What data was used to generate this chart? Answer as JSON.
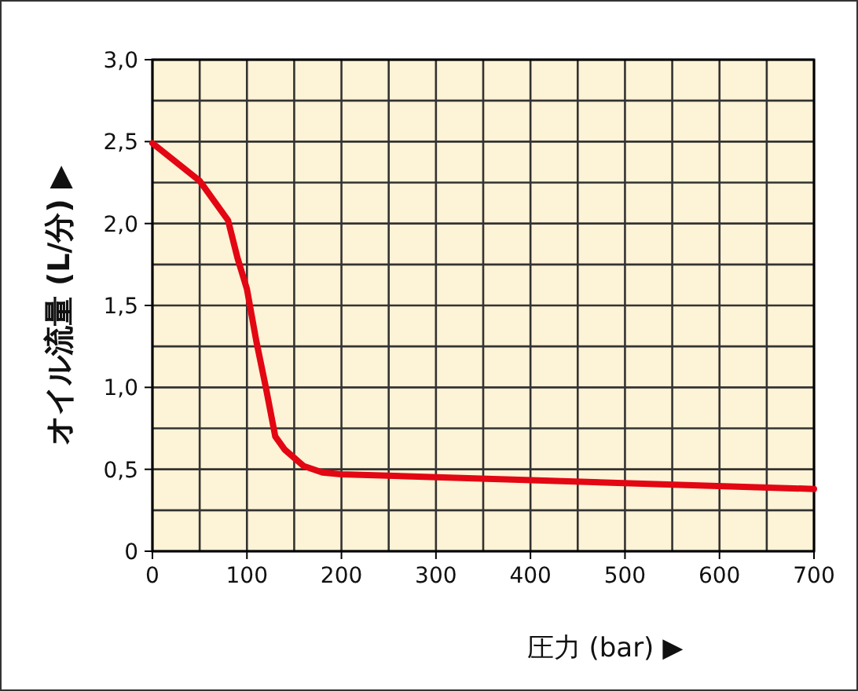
{
  "chart_data": {
    "type": "line",
    "xlabel": "圧力 (bar) ▶",
    "ylabel": "オイル流量 (L/分) ▶",
    "x": [
      0,
      50,
      80,
      90,
      100,
      110,
      120,
      130,
      140,
      160,
      180,
      200,
      700
    ],
    "series": [
      {
        "color": "#e30613",
        "values": [
          2.49,
          2.26,
          2.02,
          1.79,
          1.6,
          1.28,
          1.0,
          0.7,
          0.62,
          0.52,
          0.48,
          0.47,
          0.38
        ]
      }
    ],
    "xlim": [
      0,
      700
    ],
    "ylim": [
      0,
      3
    ],
    "xticks": [
      0,
      {
        "value": 50,
        "label": null
      },
      100,
      {
        "value": 150,
        "label": null
      },
      200,
      {
        "value": 250,
        "label": null
      },
      300,
      {
        "value": 350,
        "label": null
      },
      400,
      {
        "value": 450,
        "label": null
      },
      500,
      {
        "value": 550,
        "label": null
      },
      600,
      {
        "value": 650,
        "label": null
      },
      700
    ],
    "yticks": [
      0,
      {
        "value": 0.25,
        "label": null
      },
      {
        "value": 0.5,
        "label": "0,5"
      },
      {
        "value": 0.75,
        "label": null
      },
      {
        "value": 1,
        "label": "1,0"
      },
      {
        "value": 1.25,
        "label": null
      },
      {
        "value": 1.5,
        "label": "1,5"
      },
      {
        "value": 1.75,
        "label": null
      },
      {
        "value": 2,
        "label": "2,0"
      },
      {
        "value": 2.25,
        "label": null
      },
      {
        "value": 2.5,
        "label": "2,5"
      },
      {
        "value": 2.75,
        "label": null
      },
      {
        "value": 3,
        "label": "3,0"
      }
    ],
    "grid": true,
    "marker": "none",
    "line_style": "solid"
  }
}
